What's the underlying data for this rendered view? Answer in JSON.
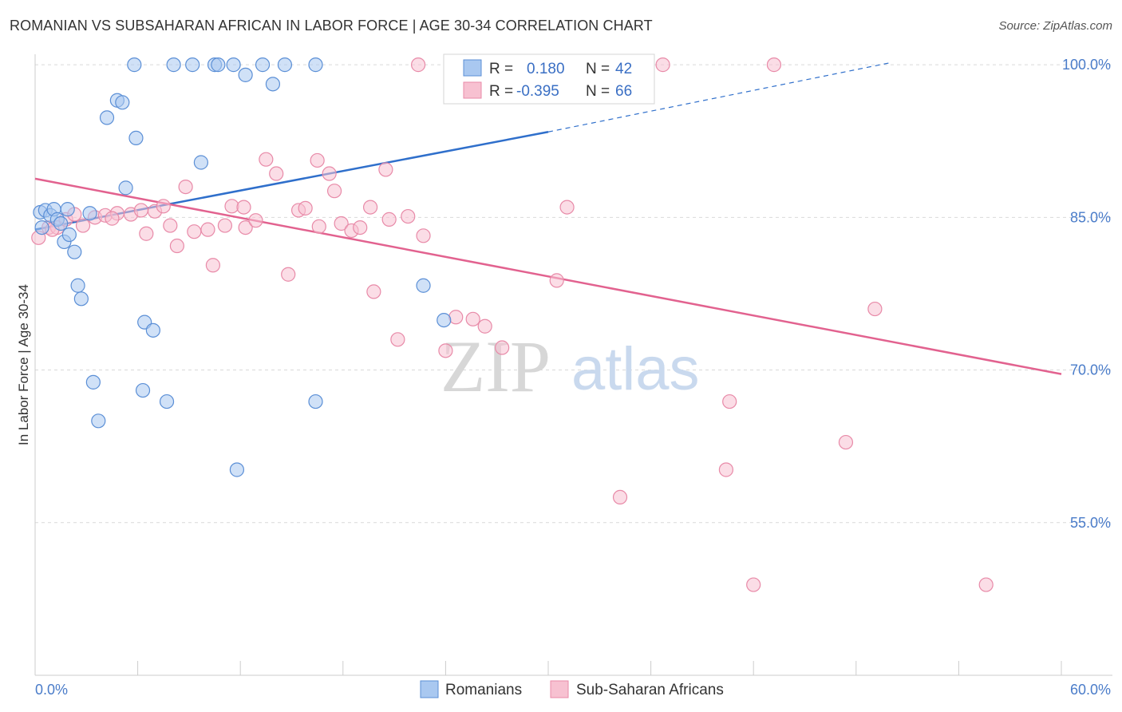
{
  "title": "ROMANIAN VS SUBSAHARAN AFRICAN IN LABOR FORCE | AGE 30-34 CORRELATION CHART",
  "source": "Source: ZipAtlas.com",
  "watermark": {
    "part1": "ZIP",
    "part2": "atlas"
  },
  "colors": {
    "blue_fill": "#a9c8f0",
    "blue_stroke": "#5b8fd6",
    "blue_line": "#2f6fcb",
    "pink_fill": "#f7c1d1",
    "pink_stroke": "#e88aa8",
    "pink_line": "#e2628f",
    "grid": "#d9d9d9",
    "tick_label": "#4a7cc9"
  },
  "legend_box": {
    "rows": [
      {
        "r_label": "R =",
        "r_value": "0.180",
        "n_label": "N =",
        "n_value": "42"
      },
      {
        "r_label": "R =",
        "r_value": "-0.395",
        "n_label": "N =",
        "n_value": "66"
      }
    ]
  },
  "chart_data": {
    "type": "scatter",
    "title": "ROMANIAN VS SUBSAHARAN AFRICAN IN LABOR FORCE | AGE 30-34 CORRELATION CHART",
    "xlabel": "",
    "ylabel": "In Labor Force | Age 30-34",
    "xlim": [
      0,
      60
    ],
    "ylim": [
      40,
      101.5
    ],
    "x_tick_labels": [
      "0.0%",
      "60.0%"
    ],
    "y_ticks": [
      100,
      85,
      70,
      55
    ],
    "y_tick_labels": [
      "100.0%",
      "85.0%",
      "70.0%",
      "55.0%"
    ],
    "grid": true,
    "legend_position": "bottom",
    "series": [
      {
        "name": "Romanians",
        "color": "#a9c8f0",
        "trend": {
          "x": [
            0,
            30,
            50
          ],
          "y": [
            83.8,
            93.4,
            100.2
          ],
          "solid_until_x": 30
        },
        "points": [
          [
            0.3,
            85.5
          ],
          [
            0.6,
            85.7
          ],
          [
            0.9,
            85.2
          ],
          [
            1.1,
            85.8
          ],
          [
            1.3,
            84.8
          ],
          [
            1.5,
            84.4
          ],
          [
            1.7,
            82.6
          ],
          [
            1.9,
            85.8
          ],
          [
            2.0,
            83.3
          ],
          [
            2.3,
            81.6
          ],
          [
            2.5,
            78.3
          ],
          [
            2.7,
            77.0
          ],
          [
            3.2,
            85.4
          ],
          [
            3.4,
            68.8
          ],
          [
            3.7,
            65.0
          ],
          [
            4.2,
            94.8
          ],
          [
            4.8,
            96.5
          ],
          [
            5.1,
            96.3
          ],
          [
            5.3,
            87.9
          ],
          [
            5.8,
            100.0
          ],
          [
            5.9,
            92.8
          ],
          [
            6.3,
            68.0
          ],
          [
            6.4,
            74.7
          ],
          [
            6.9,
            73.9
          ],
          [
            7.7,
            66.9
          ],
          [
            8.1,
            100.0
          ],
          [
            9.2,
            100.0
          ],
          [
            9.7,
            90.4
          ],
          [
            10.5,
            100.0
          ],
          [
            10.7,
            100.0
          ],
          [
            11.6,
            100.0
          ],
          [
            11.8,
            60.2
          ],
          [
            12.3,
            99.0
          ],
          [
            13.3,
            100.0
          ],
          [
            13.9,
            98.1
          ],
          [
            14.6,
            100.0
          ],
          [
            16.4,
            100.0
          ],
          [
            16.4,
            66.9
          ],
          [
            22.7,
            78.3
          ],
          [
            23.9,
            74.9
          ],
          [
            28.5,
            100.0
          ],
          [
            0.4,
            84.0
          ]
        ]
      },
      {
        "name": "Sub-Saharan Africans",
        "color": "#f7c1d1",
        "trend": {
          "x": [
            0,
            60
          ],
          "y": [
            88.8,
            69.6
          ]
        },
        "points": [
          [
            0.2,
            83.0
          ],
          [
            0.8,
            84.0
          ],
          [
            1.3,
            84.0
          ],
          [
            1.8,
            84.8
          ],
          [
            2.3,
            85.3
          ],
          [
            2.8,
            84.2
          ],
          [
            3.5,
            85.0
          ],
          [
            4.1,
            85.2
          ],
          [
            4.8,
            85.4
          ],
          [
            5.6,
            85.3
          ],
          [
            6.2,
            85.7
          ],
          [
            6.5,
            83.4
          ],
          [
            7.0,
            85.6
          ],
          [
            7.5,
            86.1
          ],
          [
            7.9,
            84.2
          ],
          [
            8.3,
            82.2
          ],
          [
            8.8,
            88.0
          ],
          [
            9.3,
            83.6
          ],
          [
            10.1,
            83.8
          ],
          [
            10.4,
            80.3
          ],
          [
            11.1,
            84.2
          ],
          [
            11.5,
            86.1
          ],
          [
            12.2,
            86.0
          ],
          [
            12.3,
            84.0
          ],
          [
            12.9,
            84.7
          ],
          [
            13.5,
            90.7
          ],
          [
            14.1,
            89.3
          ],
          [
            14.8,
            79.4
          ],
          [
            15.4,
            85.7
          ],
          [
            15.8,
            85.9
          ],
          [
            16.5,
            90.6
          ],
          [
            16.6,
            84.1
          ],
          [
            17.2,
            89.3
          ],
          [
            17.5,
            87.6
          ],
          [
            17.9,
            84.4
          ],
          [
            18.5,
            83.7
          ],
          [
            19.0,
            84.0
          ],
          [
            19.6,
            86.0
          ],
          [
            19.8,
            77.7
          ],
          [
            20.5,
            89.7
          ],
          [
            20.7,
            84.8
          ],
          [
            21.2,
            73.0
          ],
          [
            21.8,
            85.1
          ],
          [
            22.4,
            100.0
          ],
          [
            22.7,
            83.2
          ],
          [
            24.0,
            71.9
          ],
          [
            24.6,
            75.2
          ],
          [
            25.6,
            75.0
          ],
          [
            26.3,
            74.3
          ],
          [
            27.3,
            72.2
          ],
          [
            28.4,
            100.0
          ],
          [
            28.9,
            100.0
          ],
          [
            30.5,
            78.8
          ],
          [
            31.1,
            86.0
          ],
          [
            33.0,
            100.0
          ],
          [
            34.2,
            57.5
          ],
          [
            36.7,
            100.0
          ],
          [
            40.4,
            60.2
          ],
          [
            40.6,
            66.9
          ],
          [
            42.0,
            48.9
          ],
          [
            43.2,
            100.0
          ],
          [
            47.4,
            62.9
          ],
          [
            49.1,
            76.0
          ],
          [
            55.6,
            48.9
          ],
          [
            1.0,
            83.8
          ],
          [
            4.5,
            84.9
          ]
        ]
      }
    ]
  },
  "bottom_legend": [
    {
      "label": "Romanians"
    },
    {
      "label": "Sub-Saharan Africans"
    }
  ]
}
